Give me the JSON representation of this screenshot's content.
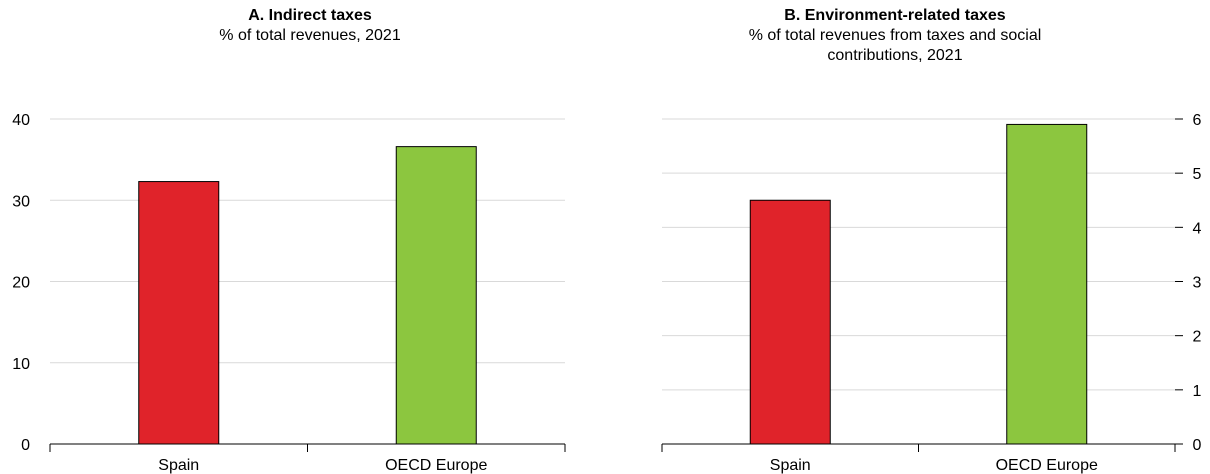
{
  "chart_data": [
    {
      "type": "bar",
      "title": "A. Indirect taxes",
      "subtitle": "% of total revenues, 2021",
      "categories": [
        "Spain",
        "OECD Europe"
      ],
      "values": [
        32.3,
        36.6
      ],
      "ylim": [
        0,
        40
      ],
      "yticks": [
        0,
        10,
        20,
        30,
        40
      ],
      "ytick_labels": [
        "0",
        "10",
        "20",
        "30",
        "40"
      ],
      "y_axis_side": "left",
      "grid": true,
      "colors": [
        "#e0232a",
        "#8cc63f"
      ]
    },
    {
      "type": "bar",
      "title": "B. Environment-related taxes",
      "subtitle_lines": [
        "% of total revenues from taxes and social",
        "contributions, 2021"
      ],
      "categories": [
        "Spain",
        "OECD Europe"
      ],
      "values": [
        4.5,
        5.9
      ],
      "ylim": [
        0,
        6
      ],
      "yticks": [
        0,
        1,
        2,
        3,
        4,
        5,
        6
      ],
      "ytick_labels": [
        "0",
        "1",
        "2",
        "3",
        "4",
        "5",
        "6"
      ],
      "y_axis_side": "right",
      "grid": true,
      "colors": [
        "#e0232a",
        "#8cc63f"
      ]
    }
  ]
}
